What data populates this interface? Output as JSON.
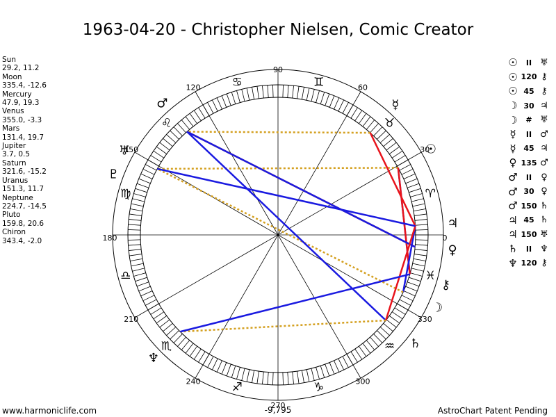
{
  "title": "1963-04-20 - Christopher Nielsen, Comic Creator",
  "planets": [
    {
      "name": "Sun",
      "position": "29.2, 11.2",
      "symbol": "☉"
    },
    {
      "name": "Moon",
      "position": "335.4, -12.6",
      "symbol": "☽"
    },
    {
      "name": "Mercury",
      "position": "47.9, 19.3",
      "symbol": "☿"
    },
    {
      "name": "Venus",
      "position": "355.0, -3.3",
      "symbol": "♀"
    },
    {
      "name": "Mars",
      "position": "131.4, 19.7",
      "symbol": "♂"
    },
    {
      "name": "Jupiter",
      "position": "3.7, 0.5",
      "symbol": "♃"
    },
    {
      "name": "Saturn",
      "position": "321.6, -15.2",
      "symbol": "♄"
    },
    {
      "name": "Uranus",
      "position": "151.3, 11.7",
      "symbol": "♅"
    },
    {
      "name": "Neptune",
      "position": "224.7, -14.5",
      "symbol": "♆"
    },
    {
      "name": "Pluto",
      "position": "159.8, 20.6",
      "symbol": "♇"
    },
    {
      "name": "Chiron",
      "position": "343.4, -2.0",
      "symbol": "⚷"
    }
  ],
  "aspects": [
    {
      "p1": "☉",
      "aspect": "II",
      "p2": "♅"
    },
    {
      "p1": "☉",
      "aspect": "120",
      "p2": "⚷"
    },
    {
      "p1": "☉",
      "aspect": "45",
      "p2": "⚷"
    },
    {
      "p1": "☽",
      "aspect": "30",
      "p2": "♃"
    },
    {
      "p1": "☽",
      "aspect": "#",
      "p2": "♅"
    },
    {
      "p1": "☿",
      "aspect": "II",
      "p2": "♂"
    },
    {
      "p1": "☿",
      "aspect": "45",
      "p2": "♃"
    },
    {
      "p1": "♀",
      "aspect": "135",
      "p2": "♂"
    },
    {
      "p1": "♂",
      "aspect": "II",
      "p2": "♀"
    },
    {
      "p1": "♂",
      "aspect": "30",
      "p2": "♀"
    },
    {
      "p1": "♂",
      "aspect": "150",
      "p2": "♄"
    },
    {
      "p1": "♃",
      "aspect": "45",
      "p2": "♄"
    },
    {
      "p1": "♃",
      "aspect": "150",
      "p2": "♅"
    },
    {
      "p1": "♄",
      "aspect": "II",
      "p2": "♆"
    },
    {
      "p1": "♆",
      "aspect": "120",
      "p2": "⚷"
    }
  ],
  "degree_labels": [
    "0",
    "30",
    "60",
    "90",
    "120",
    "150",
    "180",
    "210",
    "240",
    "270",
    "300",
    "330"
  ],
  "signs": [
    "♈",
    "♉",
    "♊",
    "♋",
    "♌",
    "♍",
    "♎",
    "♏",
    "♐",
    "♑",
    "♒",
    "♓"
  ],
  "bottom_value": "-9,795",
  "footer": {
    "left": "www.harmoniclife.com",
    "right": "AstroChart Patent Pending"
  },
  "colors": {
    "background": "#ffffff",
    "red": "#e8141c",
    "blue": "#1a1ae0",
    "gold": "#d4a020"
  }
}
